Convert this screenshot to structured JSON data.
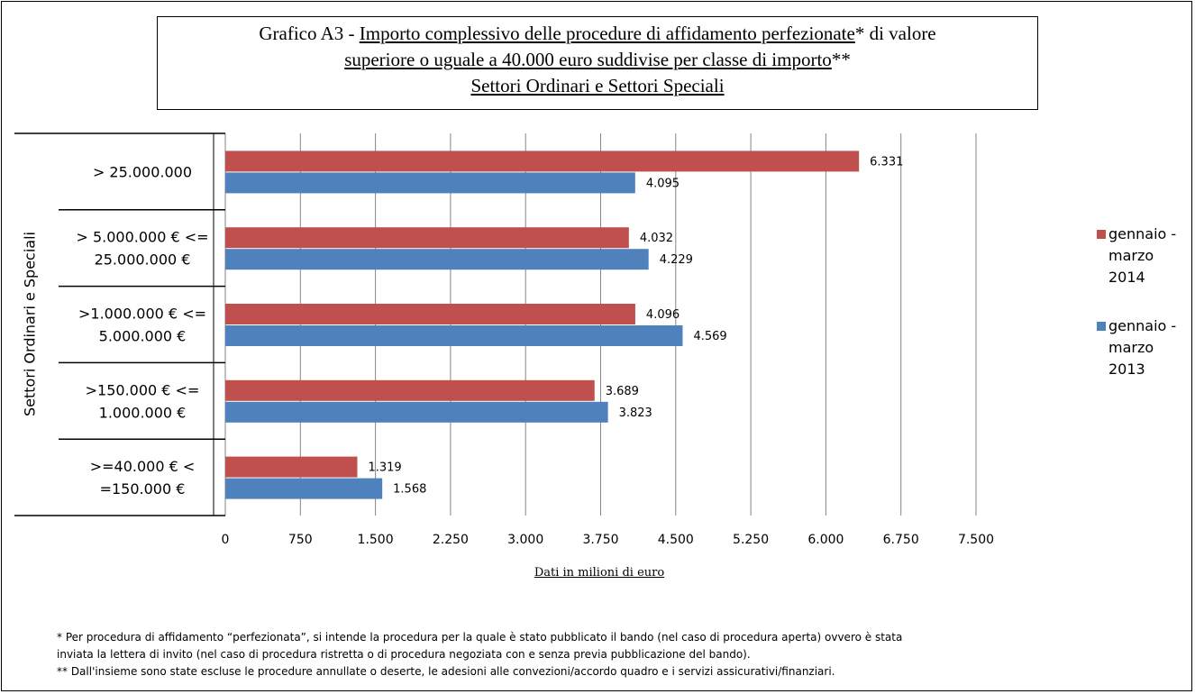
{
  "title": {
    "prefix": "Grafico  A3 - ",
    "line1_underlined": "Importo complessivo delle procedure di affidamento perfezionate",
    "line1_suffix": "* di valore",
    "line2_underlined": "superiore o uguale a 40.000 euro suddivise per classe di importo",
    "line2_suffix": "**",
    "line3_underlined": "Settori Ordinari e Settori Speciali"
  },
  "colors": {
    "series_2014": "#c0504d",
    "series_2013": "#4f81bd",
    "grid": "#868686"
  },
  "chart_data": {
    "type": "bar",
    "orientation": "horizontal",
    "y_group_label": "Settori Ordinari e Speciali",
    "categories": [
      "> 25.000.000",
      "> 5.000.000 €  <= 25.000.000 €",
      ">1.000.000 € <= 5.000.000 €",
      ">150.000 € <= 1.000.000 €",
      ">=40.000 € < =150.000 €"
    ],
    "category_lines": [
      [
        "> 25.000.000"
      ],
      [
        "> 5.000.000 €  <=",
        "25.000.000 €"
      ],
      [
        ">1.000.000 € <=",
        "5.000.000 €"
      ],
      [
        ">150.000 € <=",
        "1.000.000 €"
      ],
      [
        ">=40.000 € <",
        "=150.000 €"
      ]
    ],
    "series": [
      {
        "name": "gennaio - marzo 2014",
        "values": [
          6331,
          4032,
          4096,
          3689,
          1319
        ],
        "labels": [
          "6.331",
          "4.032",
          "4.096",
          "3.689",
          "1.319"
        ]
      },
      {
        "name": "gennaio - marzo 2013",
        "values": [
          4095,
          4229,
          4569,
          3823,
          1568
        ],
        "labels": [
          "4.095",
          "4.229",
          "4.569",
          "3.823",
          "1.568"
        ]
      }
    ],
    "xlabel": "Dati in milioni di euro",
    "xlim": [
      0,
      7500
    ],
    "xticks": [
      0,
      750,
      1500,
      2250,
      3000,
      3750,
      4500,
      5250,
      6000,
      6750,
      7500
    ],
    "xtick_labels": [
      "0",
      "750",
      "1.500",
      "2.250",
      "3.000",
      "3.750",
      "4.500",
      "5.250",
      "6.000",
      "6.750",
      "7.500"
    ],
    "grid": true,
    "legend_position": "right"
  },
  "legend": [
    {
      "lines": [
        "gennaio -",
        "marzo",
        "2014"
      ]
    },
    {
      "lines": [
        "gennaio -",
        "marzo",
        "2013"
      ]
    }
  ],
  "footnotes": [
    "* Per procedura di affidamento “perfezionata”, si intende la procedura per la quale è stato pubblicato il bando (nel caso di procedura aperta) ovvero è stata",
    "inviata la lettera di invito (nel caso di procedura ristretta o di procedura negoziata con e senza previa pubblicazione del bando).",
    "** Dall'insieme sono state escluse le procedure annullate o deserte, le adesioni alle convezioni/accordo quadro e i servizi assicurativi/finanziari."
  ]
}
